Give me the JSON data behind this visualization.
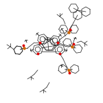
{
  "bg_color": "#ffffff",
  "line_color": "#2a2a2a",
  "red_color": "#dd0000",
  "orange_color": "#bb5500",
  "phosphorus_color": "#cc6600",
  "figsize": [
    1.5,
    1.5
  ],
  "dpi": 100
}
